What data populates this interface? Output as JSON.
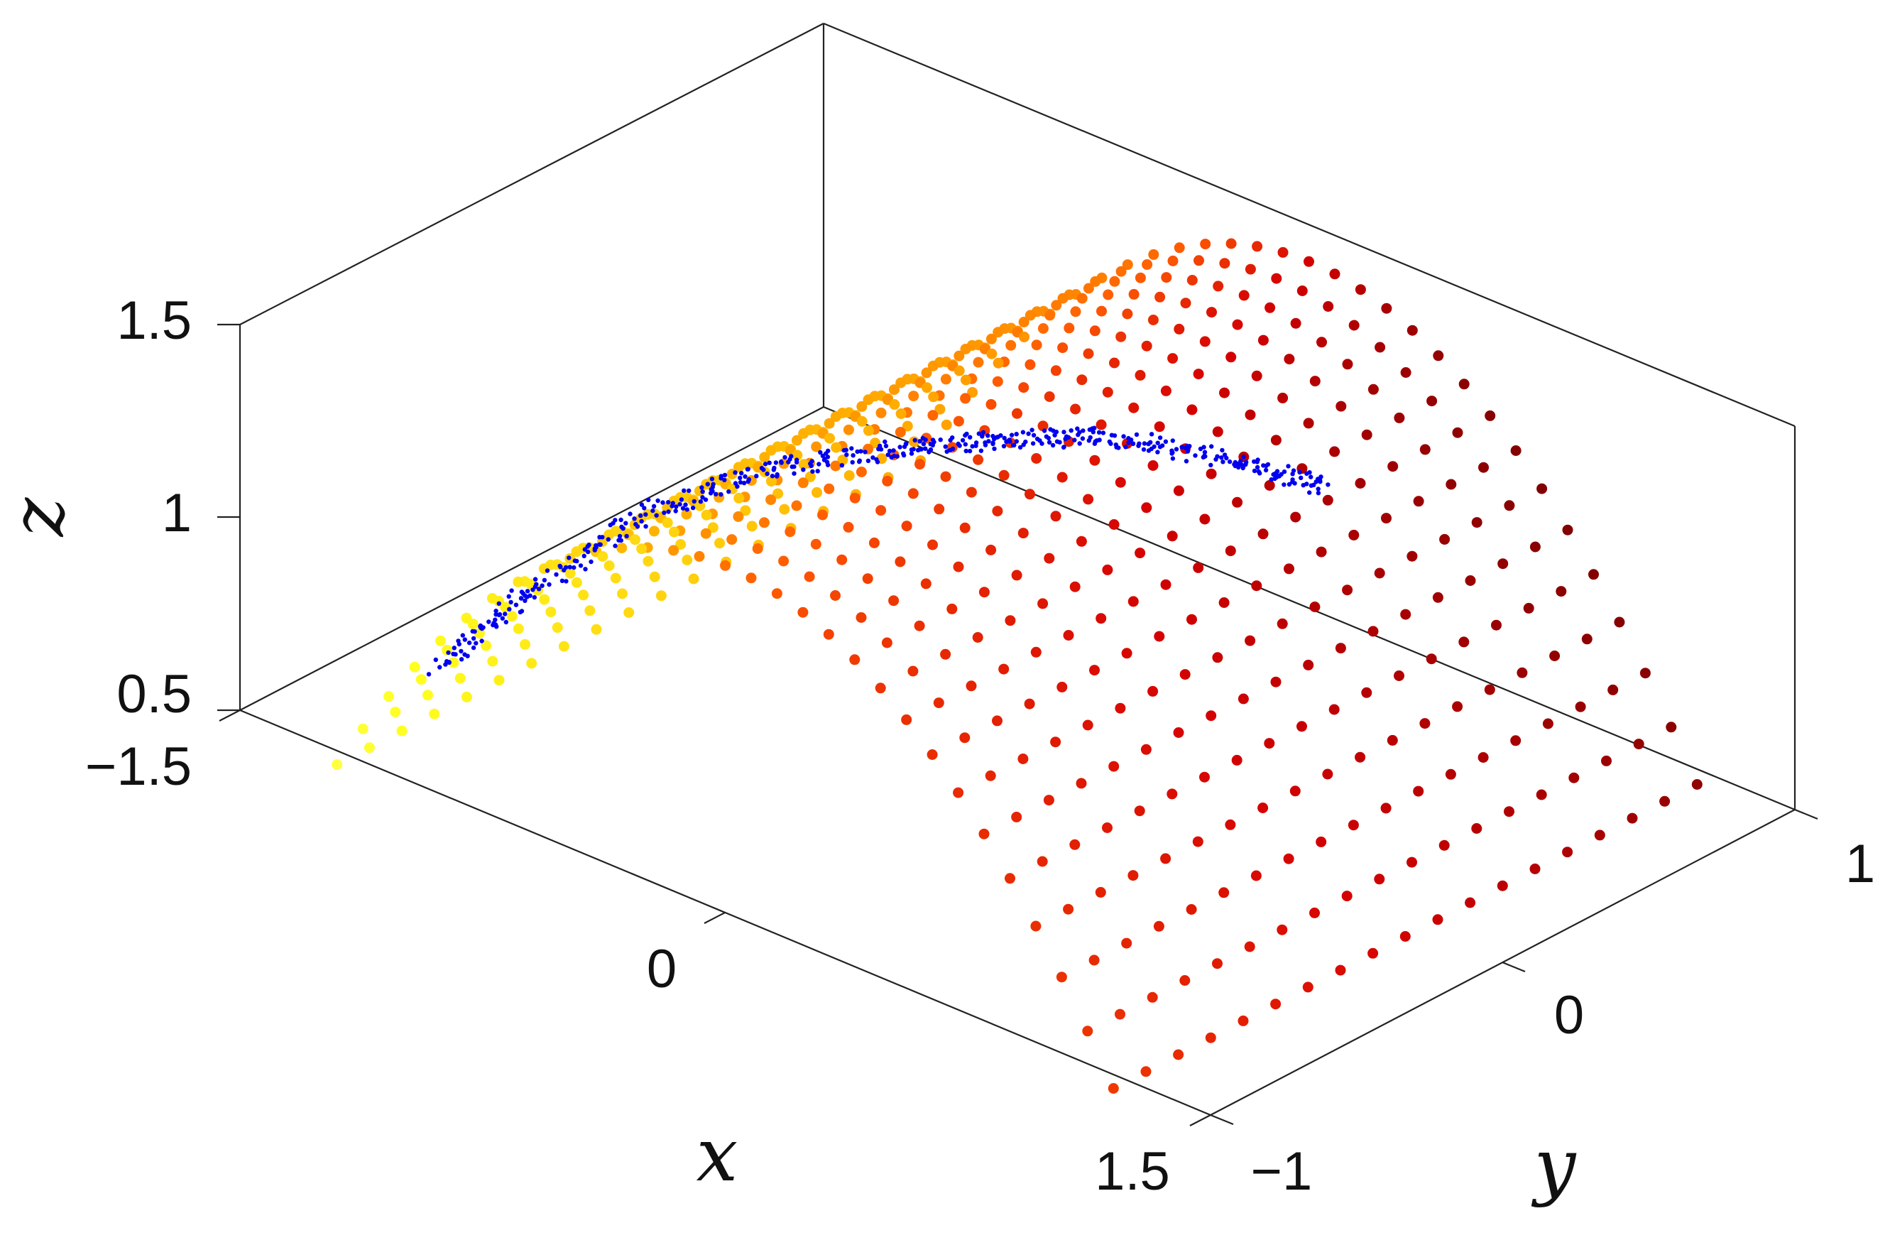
{
  "chart_data": {
    "type": "scatter",
    "variant": "3d",
    "title": "",
    "xlabel": "x",
    "ylabel": "y",
    "zlabel": "z",
    "xlim": [
      -1.5,
      1.5
    ],
    "ylim": [
      -1,
      1
    ],
    "zlim": [
      0.5,
      1.5
    ],
    "xticks": [
      "−1.5",
      "0",
      "1.5"
    ],
    "yticks": [
      "−1",
      "0",
      "1"
    ],
    "zticks": [
      "0.5",
      "1",
      "1.5"
    ],
    "grid": false,
    "legend": "none",
    "series": [
      {
        "kind": "surface-sample",
        "surface": "z = 1.4 − 0.65·x²",
        "x_range": [
          -1.2,
          1.2
        ],
        "y_range": [
          -1,
          1
        ],
        "x_count": 31,
        "y_count": 19,
        "colormap": [
          "#6b0000",
          "#d40000",
          "#ff5a00",
          "#ffb000",
          "#ffff20",
          "#ffffff"
        ]
      },
      {
        "kind": "trajectory",
        "color": "#0000ee",
        "path": [
          [
            -1.05,
            -0.82,
            0.7
          ],
          [
            -0.85,
            -0.72,
            0.93
          ],
          [
            -0.6,
            -0.6,
            1.17
          ],
          [
            -0.35,
            -0.48,
            1.32
          ],
          [
            -0.1,
            -0.3,
            1.39
          ],
          [
            0.05,
            -0.1,
            1.39
          ],
          [
            0.2,
            0.1,
            1.37
          ],
          [
            0.4,
            0.3,
            1.3
          ],
          [
            0.55,
            0.45,
            1.22
          ]
        ]
      }
    ]
  }
}
